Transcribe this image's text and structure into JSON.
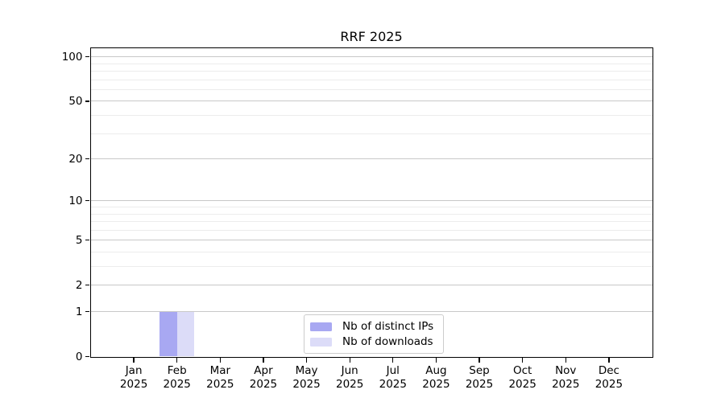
{
  "chart_data": {
    "type": "bar",
    "title": "RRF 2025",
    "categories": [
      "Jan",
      "Feb",
      "Mar",
      "Apr",
      "May",
      "Jun",
      "Jul",
      "Aug",
      "Sep",
      "Oct",
      "Nov",
      "Dec"
    ],
    "category_year": "2025",
    "series": [
      {
        "name": "Nb of distinct IPs",
        "color": "#a8a8f2",
        "values": [
          0,
          1,
          0,
          0,
          0,
          0,
          0,
          0,
          0,
          0,
          0,
          0
        ]
      },
      {
        "name": "Nb of downloads",
        "color": "#dcdcf8",
        "values": [
          0,
          1,
          0,
          0,
          0,
          0,
          0,
          0,
          0,
          0,
          0,
          0
        ]
      }
    ],
    "yscale": "log1p",
    "ylim": [
      0,
      115
    ],
    "yticks": [
      0,
      1,
      2,
      5,
      10,
      20,
      50,
      100
    ],
    "minor_gridlines": [
      3,
      4,
      6,
      7,
      8,
      9,
      30,
      40,
      60,
      70,
      80,
      90
    ],
    "grid": true,
    "legend_position": "lower center",
    "bar_width_fraction": 0.4,
    "colors": {
      "major_grid": "#c8c8c8",
      "minor_grid": "#ececec",
      "spine": "#000000",
      "text": "#000000",
      "background": "#ffffff"
    }
  }
}
